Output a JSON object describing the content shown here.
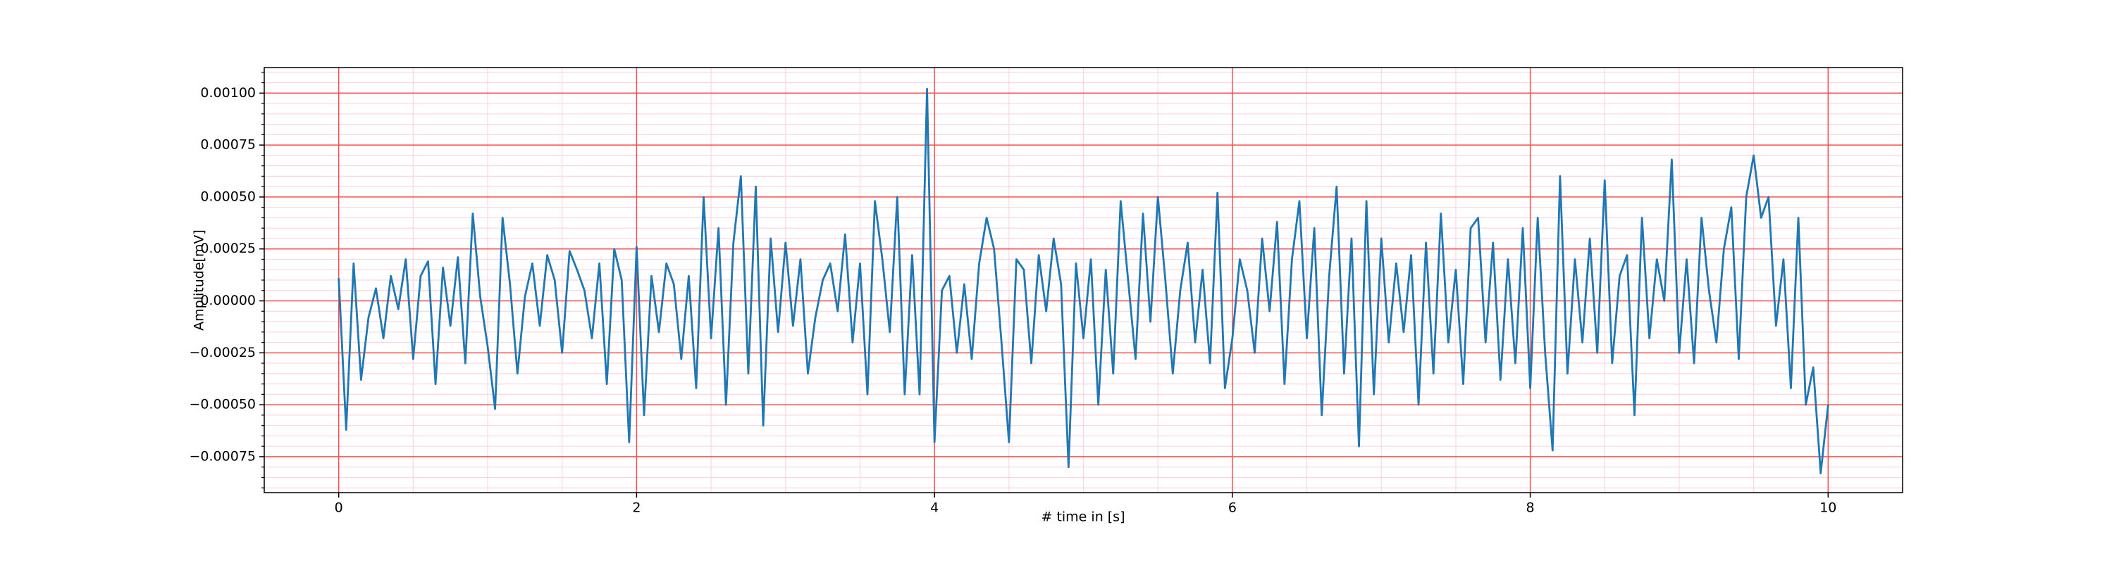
{
  "chart_data": {
    "type": "line",
    "xlabel": "# time in [s]",
    "ylabel": "Amplitude[mV]",
    "xlim": [
      -0.5,
      10.5
    ],
    "ylim": [
      -0.000923,
      0.001123
    ],
    "xticks": [
      0,
      2,
      4,
      6,
      8,
      10
    ],
    "yticks": [
      {
        "value": -0.00075,
        "label": "−0.00075"
      },
      {
        "value": -0.0005,
        "label": "−0.00050"
      },
      {
        "value": -0.00025,
        "label": "−0.00025"
      },
      {
        "value": 0,
        "label": "0.00000"
      },
      {
        "value": 0.00025,
        "label": "0.00025"
      },
      {
        "value": 0.0005,
        "label": "0.00050"
      },
      {
        "value": 0.00075,
        "label": "0.00075"
      },
      {
        "value": 0.001,
        "label": "0.00100"
      }
    ],
    "xminorticks": [
      -0.5,
      0.5,
      1,
      1.5,
      2.5,
      3,
      3.5,
      4.5,
      5,
      5.5,
      6.5,
      7,
      7.5,
      8.5,
      9,
      9.5,
      10.5
    ],
    "yminorticks": [
      -0.0009,
      -0.00085,
      -0.0008,
      -0.0007,
      -0.00065,
      -0.0006,
      -0.00055,
      -0.00045,
      -0.0004,
      -0.00035,
      -0.0003,
      -0.0002,
      -0.00015,
      -0.0001,
      -5e-05,
      5e-05,
      0.0001,
      0.00015,
      0.0002,
      0.0003,
      0.00035,
      0.0004,
      0.00045,
      0.00055,
      0.0006,
      0.00065,
      0.0007,
      0.0008,
      0.00085,
      0.0009,
      0.00095,
      0.00105,
      0.0011
    ],
    "grid": true,
    "grid_color": "#ff4d4d",
    "minor_grid_color": "#ffd6e0",
    "series": [
      {
        "color": "#1f77b4",
        "x": [
          0,
          0.05,
          0.1,
          0.15,
          0.2,
          0.25,
          0.3,
          0.35,
          0.4,
          0.45,
          0.5,
          0.55,
          0.6,
          0.65,
          0.7,
          0.75,
          0.8,
          0.85,
          0.9,
          0.95,
          1,
          1.05,
          1.1,
          1.15,
          1.2,
          1.25,
          1.3,
          1.35,
          1.4,
          1.45,
          1.5,
          1.55,
          1.6,
          1.65,
          1.7,
          1.75,
          1.8,
          1.85,
          1.9,
          1.95,
          2,
          2.05,
          2.1,
          2.15,
          2.2,
          2.25,
          2.3,
          2.35,
          2.4,
          2.45,
          2.5,
          2.55,
          2.6,
          2.65,
          2.7,
          2.75,
          2.8,
          2.85,
          2.9,
          2.95,
          3,
          3.05,
          3.1,
          3.15,
          3.2,
          3.25,
          3.3,
          3.35,
          3.4,
          3.45,
          3.5,
          3.55,
          3.6,
          3.65,
          3.7,
          3.75,
          3.8,
          3.85,
          3.9,
          3.95,
          4,
          4.05,
          4.1,
          4.15,
          4.2,
          4.25,
          4.3,
          4.35,
          4.4,
          4.45,
          4.5,
          4.55,
          4.6,
          4.65,
          4.7,
          4.75,
          4.8,
          4.85,
          4.9,
          4.95,
          5,
          5.05,
          5.1,
          5.15,
          5.2,
          5.25,
          5.3,
          5.35,
          5.4,
          5.45,
          5.5,
          5.55,
          5.6,
          5.65,
          5.7,
          5.75,
          5.8,
          5.85,
          5.9,
          5.95,
          6,
          6.05,
          6.1,
          6.15,
          6.2,
          6.25,
          6.3,
          6.35,
          6.4,
          6.45,
          6.5,
          6.55,
          6.6,
          6.65,
          6.7,
          6.75,
          6.8,
          6.85,
          6.9,
          6.95,
          7,
          7.05,
          7.1,
          7.15,
          7.2,
          7.25,
          7.3,
          7.35,
          7.4,
          7.45,
          7.5,
          7.55,
          7.6,
          7.65,
          7.7,
          7.75,
          7.8,
          7.85,
          7.9,
          7.95,
          8,
          8.05,
          8.1,
          8.15,
          8.2,
          8.25,
          8.3,
          8.35,
          8.4,
          8.45,
          8.5,
          8.55,
          8.6,
          8.65,
          8.7,
          8.75,
          8.8,
          8.85,
          8.9,
          8.95,
          9,
          9.05,
          9.1,
          9.15,
          9.2,
          9.25,
          9.3,
          9.35,
          9.4,
          9.45,
          9.5,
          9.55,
          9.6,
          9.65,
          9.7,
          9.75,
          9.8,
          9.85,
          9.9,
          9.95,
          10
        ],
        "values": [
          0.00011,
          -0.00062,
          0.00018,
          -0.00038,
          -8e-05,
          6e-05,
          -0.00018,
          0.00012,
          -4e-05,
          0.0002,
          -0.00028,
          0.00012,
          0.00019,
          -0.0004,
          0.00016,
          -0.00012,
          0.00021,
          -0.0003,
          0.00042,
          2e-05,
          -0.00022,
          -0.00052,
          0.0004,
          8e-05,
          -0.00035,
          2e-05,
          0.00018,
          -0.00012,
          0.00022,
          0.0001,
          -0.00025,
          0.00024,
          0.00015,
          5e-05,
          -0.00018,
          0.00018,
          -0.0004,
          0.00025,
          0.0001,
          -0.00068,
          0.00026,
          -0.00055,
          0.00012,
          -0.00015,
          0.00018,
          8e-05,
          -0.00028,
          0.00012,
          -0.00042,
          0.0005,
          -0.00018,
          0.00035,
          -0.0005,
          0.00028,
          0.0006,
          -0.00035,
          0.00055,
          -0.0006,
          0.0003,
          -0.00015,
          0.00028,
          -0.00012,
          0.0002,
          -0.00035,
          -8e-05,
          0.0001,
          0.00018,
          -5e-05,
          0.00032,
          -0.0002,
          0.00018,
          -0.00045,
          0.00048,
          0.0002,
          -0.00015,
          0.0005,
          -0.00045,
          0.00022,
          -0.00045,
          0.00102,
          -0.00068,
          5e-05,
          0.00012,
          -0.00025,
          8e-05,
          -0.00028,
          0.00018,
          0.0004,
          0.00025,
          -0.0002,
          -0.00068,
          0.0002,
          0.00015,
          -0.0003,
          0.00022,
          -5e-05,
          0.0003,
          8e-05,
          -0.0008,
          0.00018,
          -0.00018,
          0.0002,
          -0.0005,
          0.00015,
          -0.00035,
          0.00048,
          0.0001,
          -0.00028,
          0.00042,
          -0.0001,
          0.0005,
          0.0001,
          -0.00035,
          5e-05,
          0.00028,
          -0.0002,
          0.00015,
          -0.0003,
          0.00052,
          -0.00042,
          -0.00018,
          0.0002,
          5e-05,
          -0.00025,
          0.0003,
          -5e-05,
          0.00038,
          -0.0004,
          0.0002,
          0.00048,
          -0.00018,
          0.00035,
          -0.00055,
          0.00012,
          0.00055,
          -0.00035,
          0.0003,
          -0.0007,
          0.00048,
          -0.00045,
          0.0003,
          -0.0002,
          0.00018,
          -0.00015,
          0.00022,
          -0.0005,
          0.00028,
          -0.00035,
          0.00042,
          -0.0002,
          0.00015,
          -0.0004,
          0.00035,
          0.0004,
          -0.0002,
          0.00028,
          -0.00038,
          0.0002,
          -0.0003,
          0.00035,
          -0.00042,
          0.0004,
          -0.00025,
          -0.00072,
          0.0006,
          -0.00035,
          0.0002,
          -0.0002,
          0.0003,
          -0.00025,
          0.00058,
          -0.0003,
          0.00012,
          0.00022,
          -0.00055,
          0.0004,
          -0.00018,
          0.0002,
          0,
          0.00068,
          -0.00025,
          0.0002,
          -0.0003,
          0.0004,
          5e-05,
          -0.0002,
          0.00025,
          0.00045,
          -0.00028,
          0.0005,
          0.0007,
          0.0004,
          0.0005,
          -0.00012,
          0.0002,
          -0.00042,
          0.0004,
          -0.0005,
          -0.00032,
          -0.00083,
          -0.0005
        ]
      }
    ]
  }
}
